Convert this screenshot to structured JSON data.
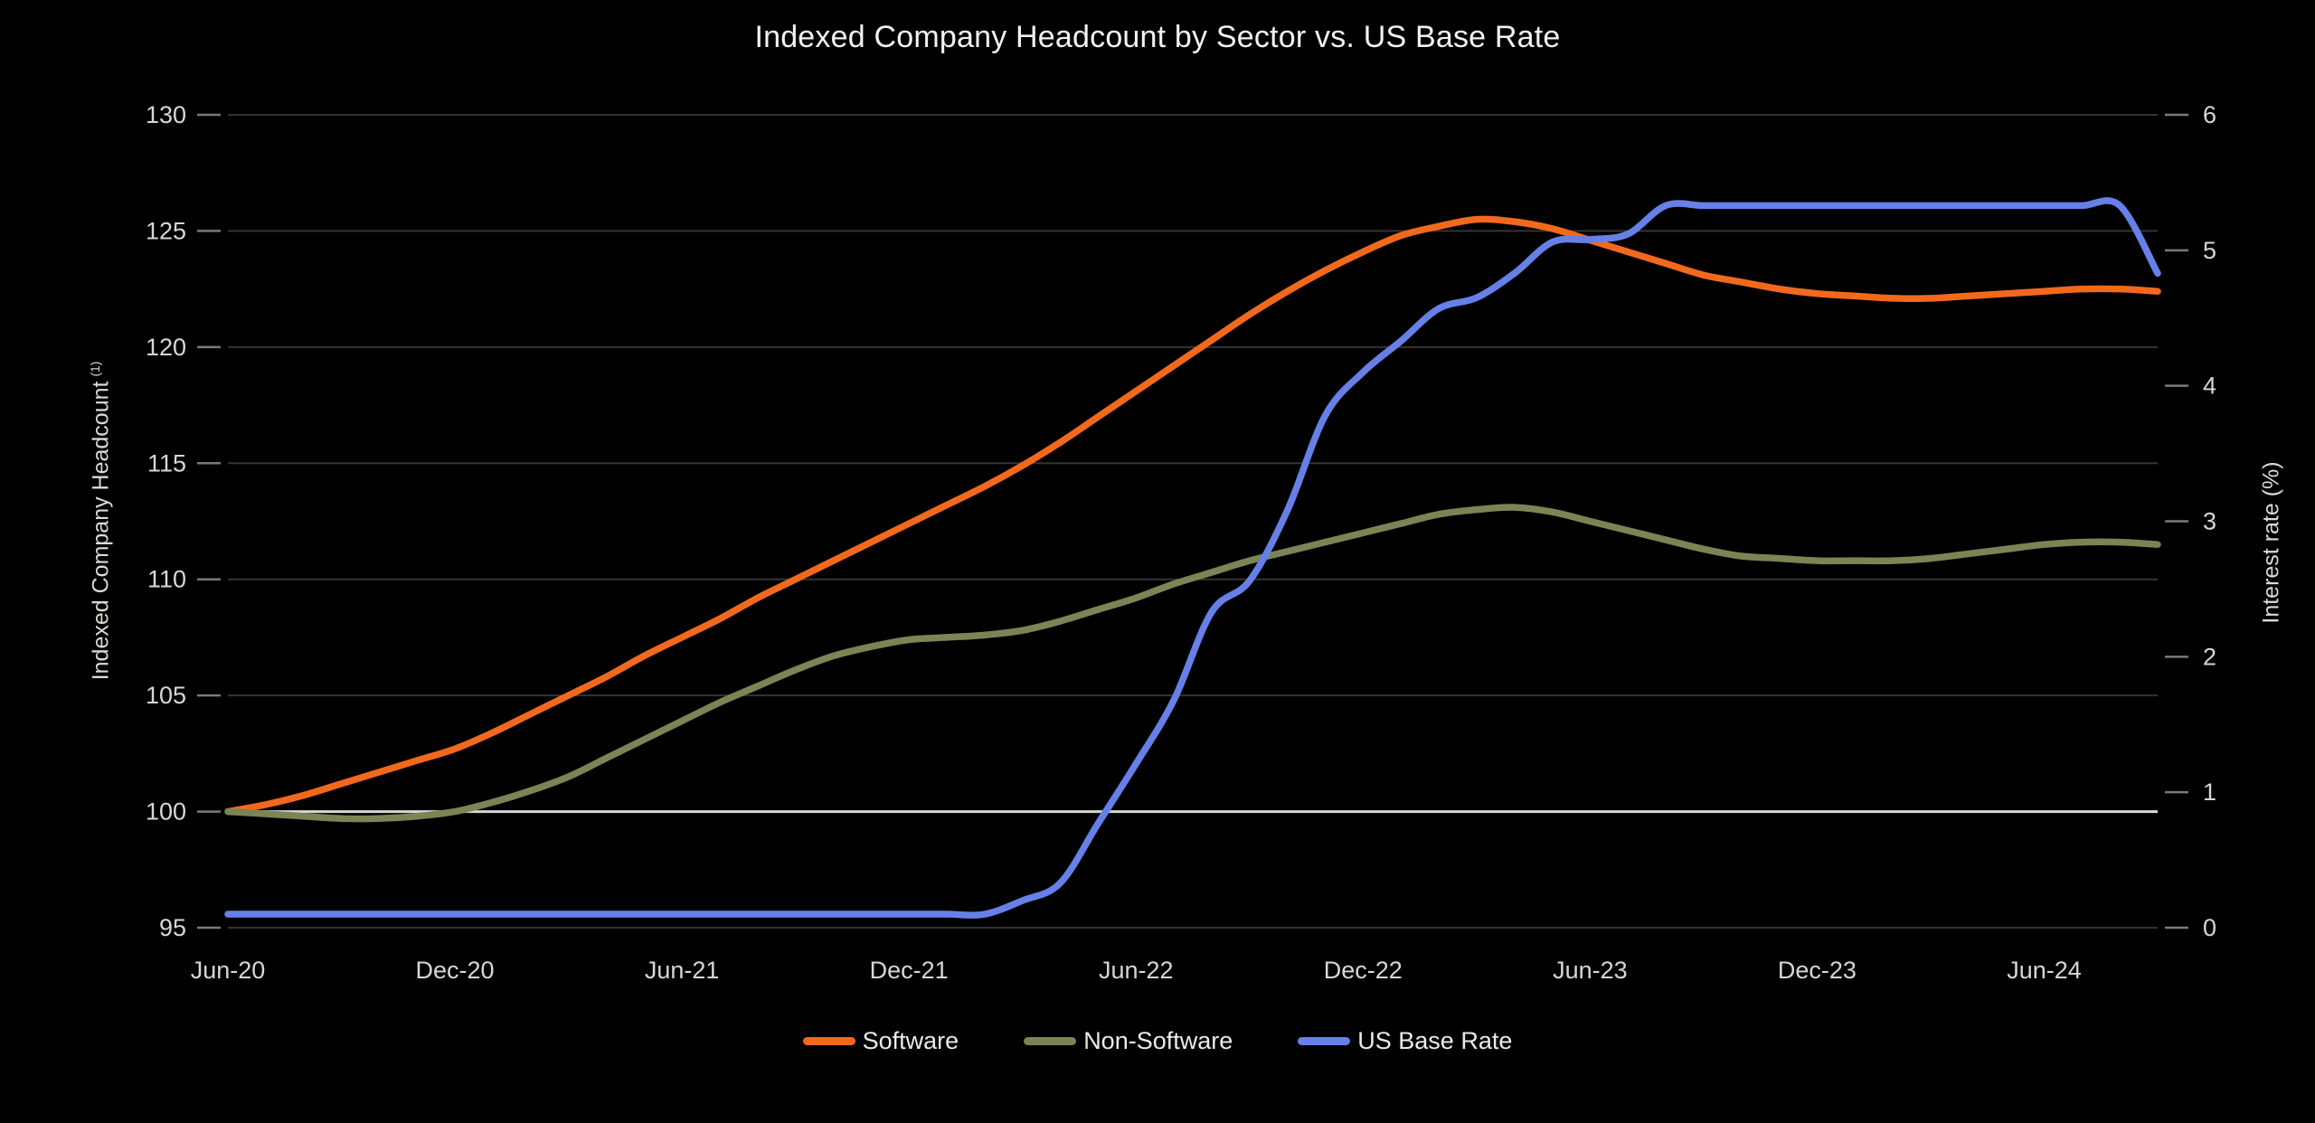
{
  "title": "Indexed Company Headcount by Sector vs. US Base Rate",
  "colors": {
    "background": "#000000",
    "title_text": "#F4F2EE",
    "tick_text": "#D9D7D2",
    "grid": "#343434",
    "baseline": "#D6D6D3",
    "tick_mark": "#7A7A7A",
    "software": "#F2691D",
    "non_software": "#7B8455",
    "us_base_rate": "#6680E8"
  },
  "legend": [
    {
      "label": "Software",
      "color": "#F2691D"
    },
    {
      "label": "Non-Software",
      "color": "#7B8455"
    },
    {
      "label": "US Base Rate",
      "color": "#6680E8"
    }
  ],
  "chart_data": {
    "type": "line",
    "title": "Indexed Company Headcount by Sector vs. US Base Rate",
    "x": [
      "Jun-20",
      "Jul-20",
      "Aug-20",
      "Sep-20",
      "Oct-20",
      "Nov-20",
      "Dec-20",
      "Jan-21",
      "Feb-21",
      "Mar-21",
      "Apr-21",
      "May-21",
      "Jun-21",
      "Jul-21",
      "Aug-21",
      "Sep-21",
      "Oct-21",
      "Nov-21",
      "Dec-21",
      "Jan-22",
      "Feb-22",
      "Mar-22",
      "Apr-22",
      "May-22",
      "Jun-22",
      "Jul-22",
      "Aug-22",
      "Sep-22",
      "Oct-22",
      "Nov-22",
      "Dec-22",
      "Jan-23",
      "Feb-23",
      "Mar-23",
      "Apr-23",
      "May-23",
      "Jun-23",
      "Jul-23",
      "Aug-23",
      "Sep-23",
      "Oct-23",
      "Nov-23",
      "Dec-23",
      "Jan-24",
      "Feb-24",
      "Mar-24",
      "Apr-24",
      "May-24",
      "Jun-24",
      "Jul-24",
      "Aug-24",
      "Sep-24"
    ],
    "x_tick_indices": [
      0,
      6,
      12,
      18,
      24,
      30,
      36,
      42,
      48
    ],
    "left_axis": {
      "label": "Indexed Company Headcount",
      "label_sup": "(1)",
      "min": 95,
      "max": 130,
      "ticks": [
        130,
        125,
        120,
        115,
        110,
        105,
        100,
        95
      ],
      "baseline": 100
    },
    "right_axis": {
      "label": "Interest rate (%)",
      "min": 0,
      "max": 6,
      "ticks": [
        6,
        5,
        4,
        3,
        2,
        1,
        0
      ]
    },
    "grid": true,
    "legend_position": "bottom",
    "series": [
      {
        "name": "Software",
        "axis": "left",
        "color": "#F2691D",
        "values": [
          100.0,
          100.3,
          100.7,
          101.2,
          101.7,
          102.2,
          102.7,
          103.4,
          104.2,
          105.0,
          105.8,
          106.7,
          107.5,
          108.3,
          109.2,
          110.0,
          110.8,
          111.6,
          112.4,
          113.2,
          114.0,
          114.9,
          115.9,
          117.0,
          118.1,
          119.2,
          120.3,
          121.4,
          122.4,
          123.3,
          124.1,
          124.8,
          125.2,
          125.5,
          125.4,
          125.1,
          124.6,
          124.1,
          123.6,
          123.1,
          122.8,
          122.5,
          122.3,
          122.2,
          122.1,
          122.1,
          122.2,
          122.3,
          122.4,
          122.5,
          122.5,
          122.4
        ]
      },
      {
        "name": "Non-Software",
        "axis": "left",
        "color": "#7B8455",
        "values": [
          100.0,
          99.9,
          99.8,
          99.7,
          99.7,
          99.8,
          100.0,
          100.4,
          100.9,
          101.5,
          102.3,
          103.1,
          103.9,
          104.7,
          105.4,
          106.1,
          106.7,
          107.1,
          107.4,
          107.5,
          107.6,
          107.8,
          108.2,
          108.7,
          109.2,
          109.8,
          110.3,
          110.8,
          111.2,
          111.6,
          112.0,
          112.4,
          112.8,
          113.0,
          113.1,
          112.9,
          112.5,
          112.1,
          111.7,
          111.3,
          111.0,
          110.9,
          110.8,
          110.8,
          110.8,
          110.9,
          111.1,
          111.3,
          111.5,
          111.6,
          111.6,
          111.5
        ]
      },
      {
        "name": "US Base Rate",
        "axis": "right",
        "color": "#6680E8",
        "values": [
          0.1,
          0.1,
          0.1,
          0.1,
          0.1,
          0.1,
          0.1,
          0.1,
          0.1,
          0.1,
          0.1,
          0.1,
          0.1,
          0.1,
          0.1,
          0.1,
          0.1,
          0.1,
          0.1,
          0.1,
          0.1,
          0.2,
          0.33,
          0.77,
          1.21,
          1.68,
          2.33,
          2.56,
          3.08,
          3.78,
          4.1,
          4.33,
          4.57,
          4.65,
          4.83,
          5.06,
          5.08,
          5.12,
          5.33,
          5.33,
          5.33,
          5.33,
          5.33,
          5.33,
          5.33,
          5.33,
          5.33,
          5.33,
          5.33,
          5.33,
          5.33,
          4.83
        ]
      }
    ]
  }
}
